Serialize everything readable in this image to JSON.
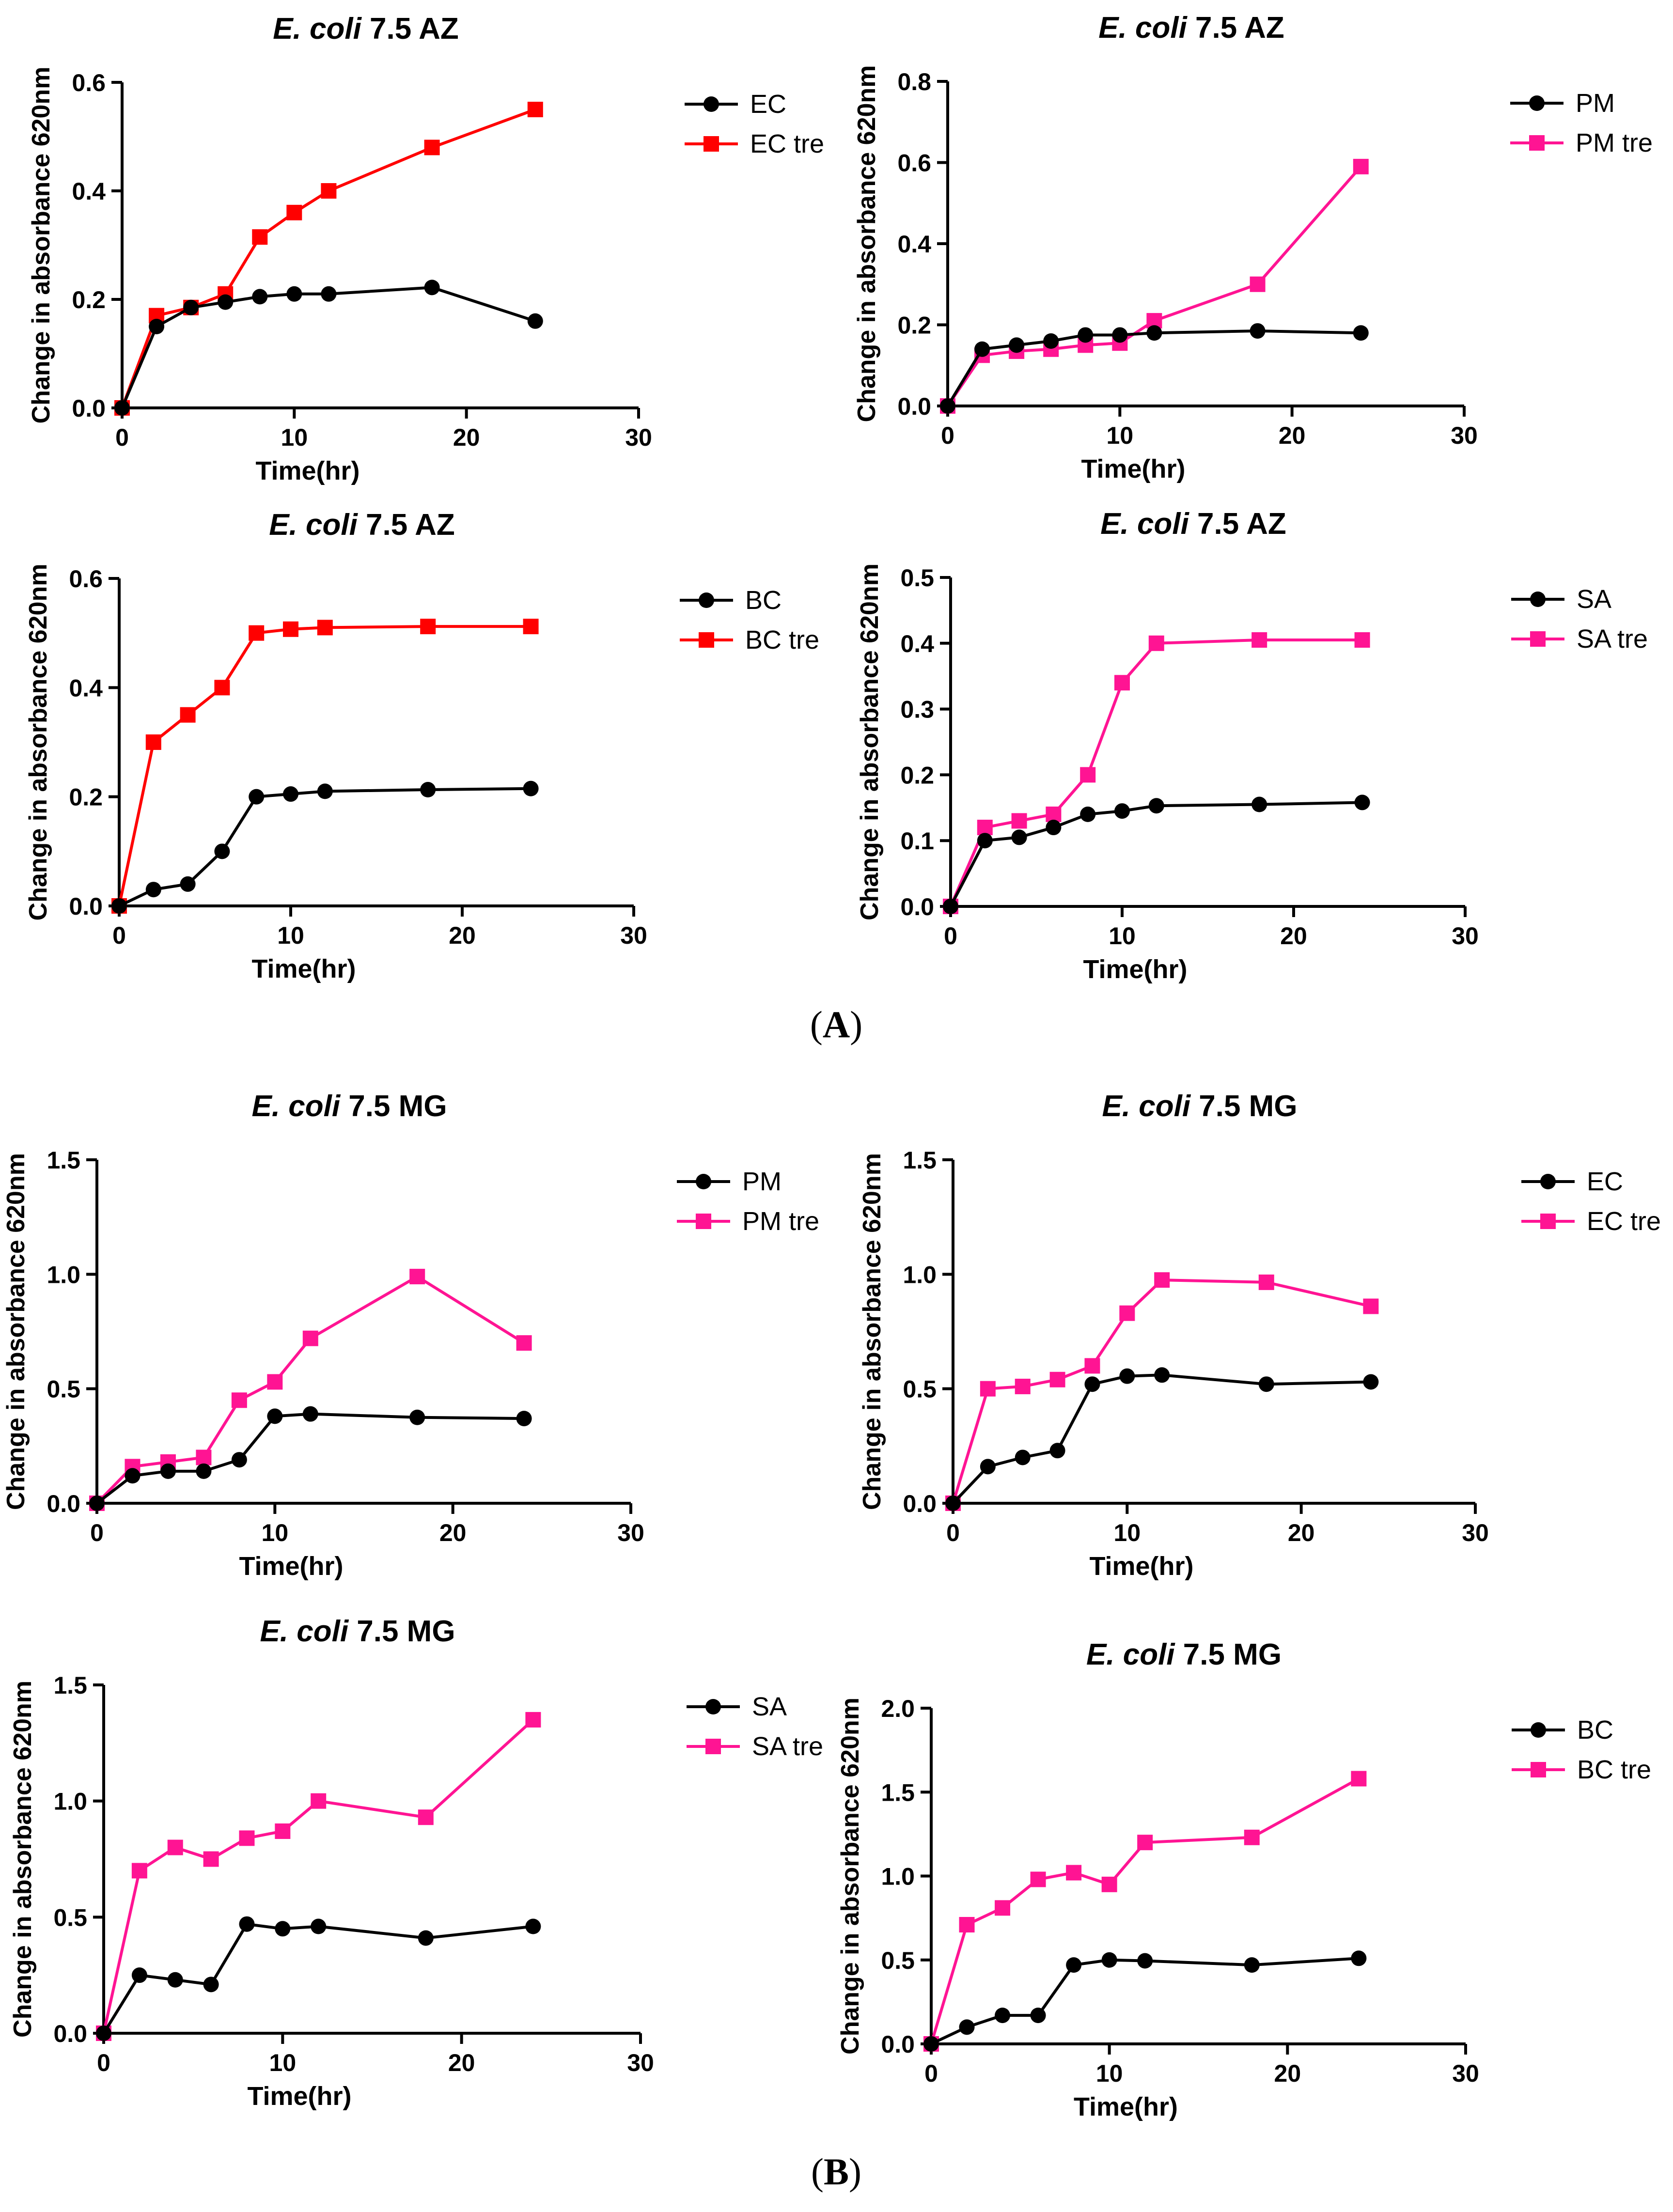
{
  "panels": [
    {
      "letter": "A",
      "open": "(",
      "close": ")"
    },
    {
      "letter": "B",
      "open": "(",
      "close": ")"
    }
  ],
  "colors": {
    "black": "#000000",
    "red": "#FF0000",
    "pink": "#FF1493"
  },
  "chart_data": [
    {
      "type": "line",
      "panel": "A",
      "title": {
        "italic": "E. coli",
        "rest": " 7.5 AZ"
      },
      "xlabel": "Time(hr)",
      "ylabel": "Change in absorbance 620nm",
      "xlim": [
        0,
        30
      ],
      "ylim": [
        0,
        0.6
      ],
      "xticks": [
        0,
        10,
        20,
        30
      ],
      "yticks": [
        "0.0",
        "0.2",
        "0.4",
        "0.6"
      ],
      "x": [
        0,
        2,
        4,
        6,
        8,
        10,
        12,
        18,
        24
      ],
      "series": [
        {
          "name": "EC",
          "marker": "circle",
          "color": "#000000",
          "values": [
            0,
            0.15,
            0.185,
            0.195,
            0.205,
            0.21,
            0.21,
            0.222,
            0.16
          ]
        },
        {
          "name": "EC tre",
          "marker": "square",
          "color": "#FF0000",
          "values": [
            0,
            0.17,
            0.185,
            0.21,
            0.315,
            0.36,
            0.4,
            0.48,
            0.55
          ]
        }
      ]
    },
    {
      "type": "line",
      "panel": "A",
      "title": {
        "italic": "E. coli",
        "rest": " 7.5 AZ"
      },
      "xlabel": "Time(hr)",
      "ylabel": "Change in absorbance 620nm",
      "xlim": [
        0,
        30
      ],
      "ylim": [
        0,
        0.8
      ],
      "xticks": [
        0,
        10,
        20,
        30
      ],
      "yticks": [
        "0.0",
        "0.2",
        "0.4",
        "0.6",
        "0.8"
      ],
      "x": [
        0,
        2,
        4,
        6,
        8,
        10,
        12,
        18,
        24
      ],
      "series": [
        {
          "name": "PM",
          "marker": "circle",
          "color": "#000000",
          "values": [
            0,
            0.14,
            0.15,
            0.16,
            0.175,
            0.175,
            0.18,
            0.185,
            0.18
          ]
        },
        {
          "name": "PM tre",
          "marker": "square",
          "color": "#FF1493",
          "values": [
            0,
            0.125,
            0.135,
            0.14,
            0.15,
            0.155,
            0.21,
            0.3,
            0.59
          ]
        }
      ]
    },
    {
      "type": "line",
      "panel": "A",
      "title": {
        "italic": "E. coli",
        "rest": " 7.5 AZ"
      },
      "xlabel": "Time(hr)",
      "ylabel": "Change in absorbance 620nm",
      "xlim": [
        0,
        30
      ],
      "ylim": [
        0,
        0.6
      ],
      "xticks": [
        0,
        10,
        20,
        30
      ],
      "yticks": [
        "0.0",
        "0.2",
        "0.4",
        "0.6"
      ],
      "x": [
        0,
        2,
        4,
        6,
        8,
        10,
        12,
        18,
        24
      ],
      "series": [
        {
          "name": "BC",
          "marker": "circle",
          "color": "#000000",
          "values": [
            0,
            0.03,
            0.04,
            0.1,
            0.2,
            0.205,
            0.21,
            0.213,
            0.215
          ]
        },
        {
          "name": "BC tre",
          "marker": "square",
          "color": "#FF0000",
          "values": [
            0,
            0.3,
            0.35,
            0.4,
            0.5,
            0.507,
            0.51,
            0.512,
            0.512
          ]
        }
      ]
    },
    {
      "type": "line",
      "panel": "A",
      "title": {
        "italic": "E. coli",
        "rest": " 7.5 AZ"
      },
      "xlabel": "Time(hr)",
      "ylabel": "Change in absorbance 620nm",
      "xlim": [
        0,
        30
      ],
      "ylim": [
        0,
        0.5
      ],
      "xticks": [
        0,
        10,
        20,
        30
      ],
      "yticks": [
        "0.0",
        "0.1",
        "0.2",
        "0.3",
        "0.4",
        "0.5"
      ],
      "x": [
        0,
        2,
        4,
        6,
        8,
        10,
        12,
        18,
        24
      ],
      "series": [
        {
          "name": "SA",
          "marker": "circle",
          "color": "#000000",
          "values": [
            0,
            0.1,
            0.105,
            0.12,
            0.14,
            0.145,
            0.153,
            0.155,
            0.158
          ]
        },
        {
          "name": "SA tre",
          "marker": "square",
          "color": "#FF1493",
          "values": [
            0,
            0.12,
            0.13,
            0.14,
            0.2,
            0.34,
            0.4,
            0.405,
            0.405
          ]
        }
      ]
    },
    {
      "type": "line",
      "panel": "B",
      "title": {
        "italic": "E. coli",
        "rest": " 7.5 MG"
      },
      "xlabel": "Time(hr)",
      "ylabel": "Change in absorbance 620nm",
      "xlim": [
        0,
        30
      ],
      "ylim": [
        0,
        1.5
      ],
      "xticks": [
        0,
        10,
        20,
        30
      ],
      "yticks": [
        "0.0",
        "0.5",
        "1.0",
        "1.5"
      ],
      "x": [
        0,
        2,
        4,
        6,
        8,
        10,
        12,
        18,
        24
      ],
      "series": [
        {
          "name": "PM",
          "marker": "circle",
          "color": "#000000",
          "values": [
            0,
            0.12,
            0.14,
            0.14,
            0.19,
            0.38,
            0.39,
            0.375,
            0.37
          ]
        },
        {
          "name": "PM tre",
          "marker": "square",
          "color": "#FF1493",
          "values": [
            0,
            0.16,
            0.18,
            0.2,
            0.45,
            0.53,
            0.72,
            0.99,
            0.7
          ]
        }
      ]
    },
    {
      "type": "line",
      "panel": "B",
      "title": {
        "italic": "E. coli",
        "rest": " 7.5 MG"
      },
      "xlabel": "Time(hr)",
      "ylabel": "Change in absorbance 620nm",
      "xlim": [
        0,
        30
      ],
      "ylim": [
        0,
        1.5
      ],
      "xticks": [
        0,
        10,
        20,
        30
      ],
      "yticks": [
        "0.0",
        "0.5",
        "1.0",
        "1.5"
      ],
      "x": [
        0,
        2,
        4,
        6,
        8,
        10,
        12,
        18,
        24
      ],
      "series": [
        {
          "name": "EC",
          "marker": "circle",
          "color": "#000000",
          "values": [
            0,
            0.16,
            0.2,
            0.23,
            0.52,
            0.555,
            0.56,
            0.52,
            0.53
          ]
        },
        {
          "name": "EC tre",
          "marker": "square",
          "color": "#FF1493",
          "values": [
            0,
            0.5,
            0.51,
            0.54,
            0.6,
            0.83,
            0.975,
            0.965,
            0.86
          ]
        }
      ]
    },
    {
      "type": "line",
      "panel": "B",
      "title": {
        "italic": "E. coli",
        "rest": " 7.5 MG"
      },
      "xlabel": "Time(hr)",
      "ylabel": "Change in absorbance 620nm",
      "xlim": [
        0,
        30
      ],
      "ylim": [
        0,
        1.5
      ],
      "xticks": [
        0,
        10,
        20,
        30
      ],
      "yticks": [
        "0.0",
        "0.5",
        "1.0",
        "1.5"
      ],
      "x": [
        0,
        2,
        4,
        6,
        8,
        10,
        12,
        18,
        24
      ],
      "series": [
        {
          "name": "SA",
          "marker": "circle",
          "color": "#000000",
          "values": [
            0,
            0.25,
            0.23,
            0.21,
            0.47,
            0.45,
            0.46,
            0.41,
            0.46
          ]
        },
        {
          "name": "SA tre",
          "marker": "square",
          "color": "#FF1493",
          "values": [
            0,
            0.7,
            0.8,
            0.75,
            0.84,
            0.87,
            1.0,
            0.93,
            1.35
          ]
        }
      ]
    },
    {
      "type": "line",
      "panel": "B",
      "title": {
        "italic": "E. coli",
        "rest": " 7.5 MG"
      },
      "xlabel": "Time(hr)",
      "ylabel": "Change in absorbance 620nm",
      "xlim": [
        0,
        30
      ],
      "ylim": [
        0,
        2.0
      ],
      "xticks": [
        0,
        10,
        20,
        30
      ],
      "yticks": [
        "0.0",
        "0.5",
        "1.0",
        "1.5",
        "2.0"
      ],
      "x": [
        0,
        2,
        4,
        6,
        8,
        10,
        12,
        18,
        24
      ],
      "series": [
        {
          "name": "BC",
          "marker": "circle",
          "color": "#000000",
          "values": [
            0,
            0.1,
            0.17,
            0.17,
            0.47,
            0.5,
            0.495,
            0.47,
            0.51
          ]
        },
        {
          "name": "BC tre",
          "marker": "square",
          "color": "#FF1493",
          "values": [
            0,
            0.71,
            0.81,
            0.98,
            1.02,
            0.95,
            1.2,
            1.23,
            1.58
          ]
        }
      ]
    }
  ]
}
